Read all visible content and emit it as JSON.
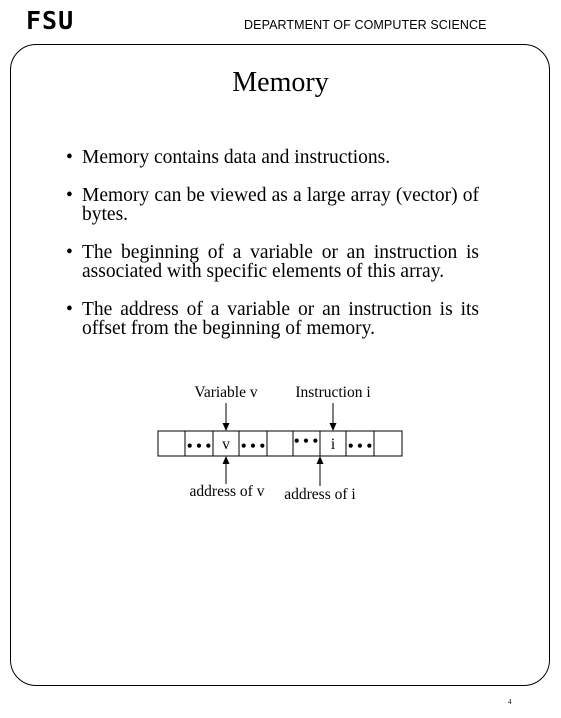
{
  "header": {
    "logo": "FSU",
    "department": "DEPARTMENT OF COMPUTER SCIENCE"
  },
  "slide": {
    "title": "Memory",
    "bullets": [
      "Memory contains data and instructions.",
      "Memory can be viewed as a large array (vector) of bytes.",
      "The beginning of a variable or an instruction is associated with specific elements of this array.",
      "The address of a variable or an instruction is its offset from the beginning of memory."
    ],
    "bullet_symbol": "•"
  },
  "diagram": {
    "label_variable": "Variable v",
    "label_instruction": "Instruction i",
    "cell_v": "v",
    "cell_i": "i",
    "ellipsis": "• • •",
    "label_address_v": "address of v",
    "label_address_i": "address of i"
  },
  "page_number": "4"
}
